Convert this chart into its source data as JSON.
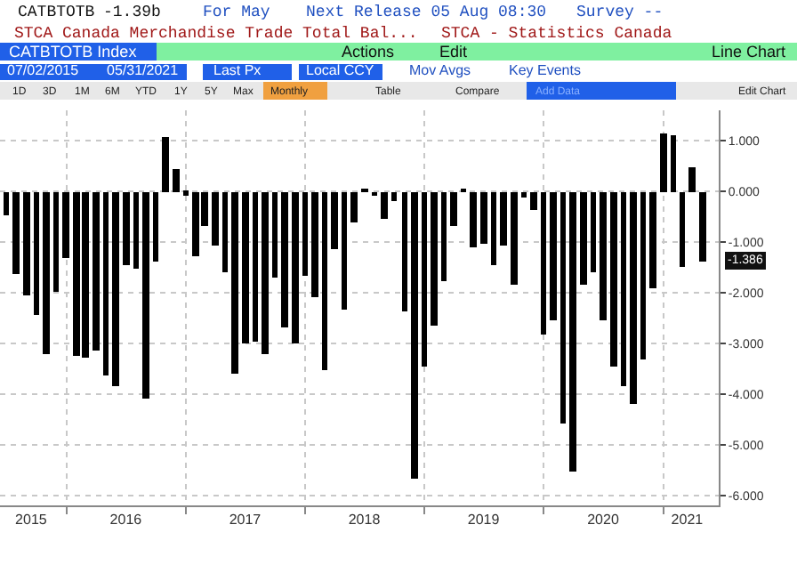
{
  "chart_data": {
    "type": "bar",
    "title": "STCA Canada Merchandise Trade Total Bal...",
    "subtitle": "STCA - Statistics Canada",
    "annotations": [
      "CATBTOTB",
      "-1.39b",
      "For May",
      "Next Release 05 Aug 08:30",
      "Survey --",
      "CATBTOTB Index",
      "Actions",
      "Edit",
      "Line Chart",
      "07/02/2015",
      "05/31/2021",
      "Last Px",
      "Local CCY",
      "Mov Avgs",
      "Key Events",
      "1D",
      "3D",
      "1M",
      "6M",
      "YTD",
      "1Y",
      "5Y",
      "Max",
      "Monthly",
      "Table",
      "Compare",
      "Add Data",
      "Edit Chart",
      {
        "text": "-1.386",
        "x": "2021-05",
        "y": -1.386
      }
    ],
    "x": [
      "2015-07",
      "2015-08",
      "2015-09",
      "2015-10",
      "2015-11",
      "2015-12",
      "2016-01",
      "2016-02",
      "2016-03",
      "2016-04",
      "2016-05",
      "2016-06",
      "2016-07",
      "2016-08",
      "2016-09",
      "2016-10",
      "2016-11",
      "2016-12",
      "2017-01",
      "2017-02",
      "2017-03",
      "2017-04",
      "2017-05",
      "2017-06",
      "2017-07",
      "2017-08",
      "2017-09",
      "2017-10",
      "2017-11",
      "2017-12",
      "2018-01",
      "2018-02",
      "2018-03",
      "2018-04",
      "2018-05",
      "2018-06",
      "2018-07",
      "2018-08",
      "2018-09",
      "2018-10",
      "2018-11",
      "2018-12",
      "2019-01",
      "2019-02",
      "2019-03",
      "2019-04",
      "2019-05",
      "2019-06",
      "2019-07",
      "2019-08",
      "2019-09",
      "2019-10",
      "2019-11",
      "2019-12",
      "2020-01",
      "2020-02",
      "2020-03",
      "2020-04",
      "2020-05",
      "2020-06",
      "2020-07",
      "2020-08",
      "2020-09",
      "2020-10",
      "2020-11",
      "2020-12",
      "2021-01",
      "2021-02",
      "2021-03",
      "2021-04",
      "2021-05"
    ],
    "values": [
      -0.48,
      -1.64,
      -2.05,
      -2.45,
      -3.2,
      -2.0,
      -1.33,
      -3.26,
      -3.29,
      -3.13,
      -3.65,
      -3.83,
      -1.45,
      -1.54,
      -4.1,
      -1.4,
      1.08,
      0.45,
      -0.07,
      -1.28,
      -0.67,
      -1.06,
      -1.6,
      -3.61,
      -2.99,
      -2.96,
      -3.23,
      -1.7,
      -2.67,
      -2.99,
      -1.66,
      -2.08,
      -3.52,
      -1.13,
      -2.34,
      -0.61,
      0.05,
      -0.1,
      -0.55,
      -0.19,
      -2.36,
      -5.66,
      -3.47,
      -2.65,
      -1.78,
      -0.67,
      0.02,
      -1.11,
      -1.04,
      -1.45,
      -1.08,
      -1.85,
      -0.13,
      -0.37,
      -2.84,
      -2.53,
      -4.58,
      -5.54,
      -1.83,
      -1.6,
      -2.53,
      -3.45,
      -3.83,
      -4.19,
      -3.33,
      -1.9,
      1.14,
      1.11,
      -1.48,
      0.47,
      -1.386
    ],
    "color": "#000000",
    "xlim": [
      "2015-06-12",
      "2021-06-20"
    ],
    "xticks": [
      {
        "value": "2015-09-15",
        "label": "2015"
      },
      {
        "value": "2016-07-01",
        "label": "2016"
      },
      {
        "value": "2017-07-01",
        "label": "2017"
      },
      {
        "value": "2018-07-01",
        "label": "2018"
      },
      {
        "value": "2019-07-01",
        "label": "2019"
      },
      {
        "value": "2020-07-01",
        "label": "2020"
      },
      {
        "value": "2021-03-15",
        "label": "2021"
      },
      {
        "value": "2016-01-01",
        "label": null
      },
      {
        "value": "2017-01-01",
        "label": null
      },
      {
        "value": "2018-01-01",
        "label": null
      },
      {
        "value": "2019-01-01",
        "label": null
      },
      {
        "value": "2020-01-01",
        "label": null
      },
      {
        "value": "2021-01-01",
        "label": null
      }
    ],
    "ylim": [
      -6.2,
      1.6
    ],
    "yticks": [
      {
        "value": 1,
        "label": "1.000"
      },
      {
        "value": 0,
        "label": "0.000"
      },
      {
        "value": -1,
        "label": "-1.000"
      },
      {
        "value": -2,
        "label": "-2.000"
      },
      {
        "value": -3,
        "label": "-3.000"
      },
      {
        "value": -4,
        "label": "-4.000"
      },
      {
        "value": -5,
        "label": "-5.000"
      },
      {
        "value": -6,
        "label": "-6.000"
      }
    ],
    "grid": true
  }
}
